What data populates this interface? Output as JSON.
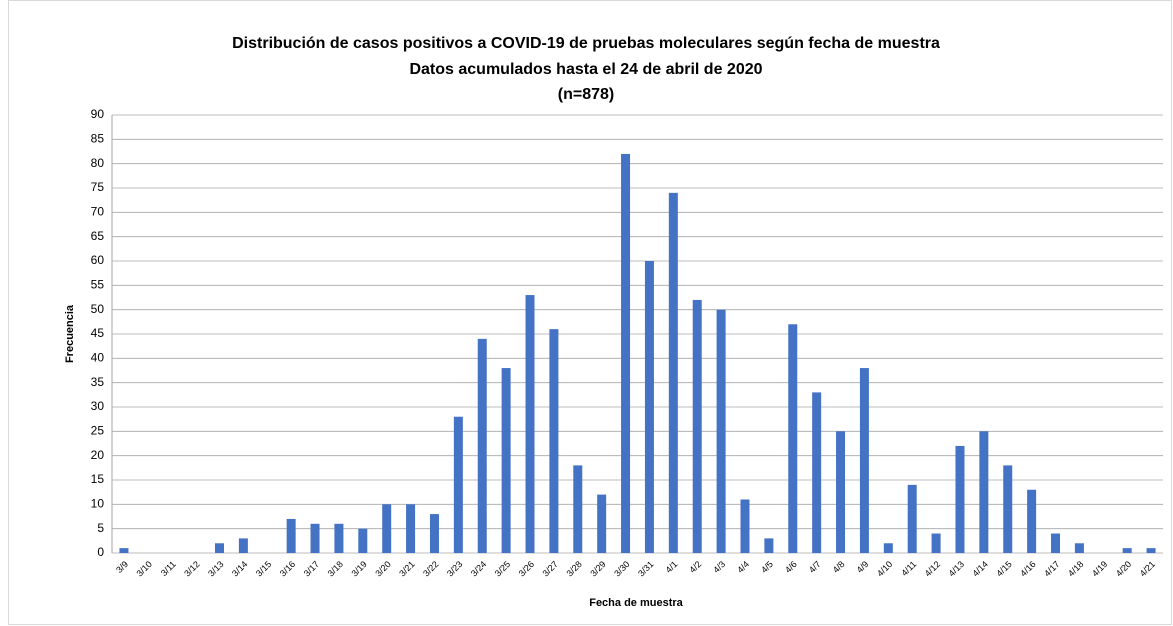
{
  "chart_data": {
    "type": "bar",
    "title": "Distribución de casos positivos a COVID-19 de pruebas moleculares según fecha de muestra",
    "subtitle": "Datos acumulados hasta el 24 de abril de 2020",
    "note": "(n=878)",
    "x_label": "Fecha de muestra",
    "y_label": "Frecuencia",
    "categories": [
      "3/9",
      "3/10",
      "3/11",
      "3/12",
      "3/13",
      "3/14",
      "3/15",
      "3/16",
      "3/17",
      "3/18",
      "3/19",
      "3/20",
      "3/21",
      "3/22",
      "3/23",
      "3/24",
      "3/25",
      "3/26",
      "3/27",
      "3/28",
      "3/29",
      "3/30",
      "3/31",
      "4/1",
      "4/2",
      "4/3",
      "4/4",
      "4/5",
      "4/6",
      "4/7",
      "4/8",
      "4/9",
      "4/10",
      "4/11",
      "4/12",
      "4/13",
      "4/14",
      "4/15",
      "4/16",
      "4/17",
      "4/18",
      "4/19",
      "4/20",
      "4/21"
    ],
    "values": [
      1,
      0,
      0,
      0,
      2,
      3,
      0,
      7,
      6,
      6,
      5,
      10,
      10,
      8,
      28,
      44,
      38,
      53,
      46,
      18,
      12,
      82,
      60,
      74,
      52,
      50,
      11,
      3,
      47,
      33,
      25,
      38,
      2,
      14,
      4,
      22,
      25,
      18,
      13,
      4,
      2,
      0,
      1,
      1
    ],
    "color": "#4472c4",
    "ylim": [
      0,
      90
    ],
    "yticks": [
      0,
      5,
      10,
      15,
      20,
      25,
      30,
      35,
      40,
      45,
      50,
      55,
      60,
      65,
      70,
      75,
      80,
      85,
      90
    ],
    "grid": true
  }
}
